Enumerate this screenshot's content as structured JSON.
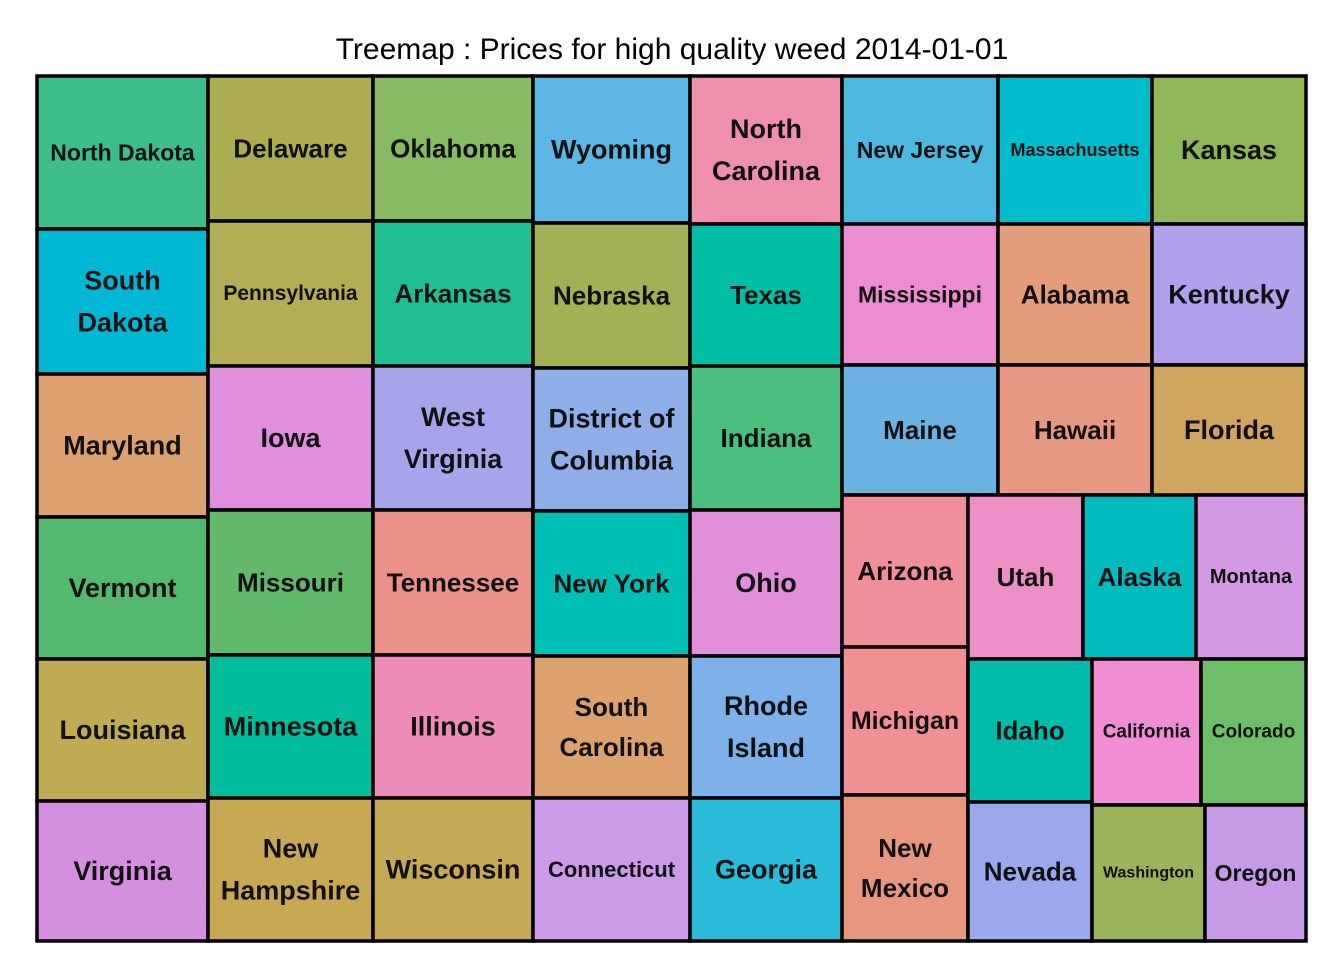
{
  "chart_data": {
    "type": "treemap",
    "title": "Treemap : Prices for high quality weed 2014-01-01",
    "tiles": [
      {
        "name": "North Dakota",
        "lines": [
          "North Dakota"
        ],
        "color": "#3cbd8a"
      },
      {
        "name": "South Dakota",
        "lines": [
          "South",
          "Dakota"
        ],
        "color": "#00b8d3"
      },
      {
        "name": "Maryland",
        "lines": [
          "Maryland"
        ],
        "color": "#dca071"
      },
      {
        "name": "Vermont",
        "lines": [
          "Vermont"
        ],
        "color": "#55b871"
      },
      {
        "name": "Louisiana",
        "lines": [
          "Louisiana"
        ],
        "color": "#c0ab55"
      },
      {
        "name": "Virginia",
        "lines": [
          "Virginia"
        ],
        "color": "#d48fdf"
      },
      {
        "name": "Delaware",
        "lines": [
          "Delaware"
        ],
        "color": "#abad50"
      },
      {
        "name": "Pennsylvania",
        "lines": [
          "Pennsylvania"
        ],
        "color": "#b3ad55"
      },
      {
        "name": "Iowa",
        "lines": [
          "Iowa"
        ],
        "color": "#df8fdc"
      },
      {
        "name": "Missouri",
        "lines": [
          "Missouri"
        ],
        "color": "#62b86b"
      },
      {
        "name": "Minnesota",
        "lines": [
          "Minnesota"
        ],
        "color": "#00be9c"
      },
      {
        "name": "New Hampshire",
        "lines": [
          "New",
          "Hampshire"
        ],
        "color": "#c7a853"
      },
      {
        "name": "Oklahoma",
        "lines": [
          "Oklahoma"
        ],
        "color": "#87ba62"
      },
      {
        "name": "Arkansas",
        "lines": [
          "Arkansas"
        ],
        "color": "#20bf92"
      },
      {
        "name": "West Virginia",
        "lines": [
          "West",
          "Virginia"
        ],
        "color": "#a6a4ea"
      },
      {
        "name": "Tennessee",
        "lines": [
          "Tennessee"
        ],
        "color": "#ea918a"
      },
      {
        "name": "Illinois",
        "lines": [
          "Illinois"
        ],
        "color": "#ed8cb7"
      },
      {
        "name": "Wisconsin",
        "lines": [
          "Wisconsin"
        ],
        "color": "#c4a956"
      },
      {
        "name": "Wyoming",
        "lines": [
          "Wyoming"
        ],
        "color": "#5db6e3"
      },
      {
        "name": "Nebraska",
        "lines": [
          "Nebraska"
        ],
        "color": "#a2b155"
      },
      {
        "name": "District of Columbia",
        "lines": [
          "District of",
          "Columbia"
        ],
        "color": "#8fade9"
      },
      {
        "name": "New York",
        "lines": [
          "New York"
        ],
        "color": "#00bfb4"
      },
      {
        "name": "South Carolina",
        "lines": [
          "South",
          "Carolina"
        ],
        "color": "#dca16c"
      },
      {
        "name": "Connecticut",
        "lines": [
          "Connecticut"
        ],
        "color": "#c99be8"
      },
      {
        "name": "North Carolina",
        "lines": [
          "North",
          "Carolina"
        ],
        "color": "#ee8fab"
      },
      {
        "name": "Texas",
        "lines": [
          "Texas"
        ],
        "color": "#00bfa4"
      },
      {
        "name": "Indiana",
        "lines": [
          "Indiana"
        ],
        "color": "#4bbf7e"
      },
      {
        "name": "Ohio",
        "lines": [
          "Ohio"
        ],
        "color": "#e18fd8"
      },
      {
        "name": "Rhode Island",
        "lines": [
          "Rhode",
          "Island"
        ],
        "color": "#7eb0ea"
      },
      {
        "name": "Georgia",
        "lines": [
          "Georgia"
        ],
        "color": "#29bbd8"
      },
      {
        "name": "New Jersey",
        "lines": [
          "New Jersey"
        ],
        "color": "#4cb9df"
      },
      {
        "name": "Mississippi",
        "lines": [
          "Mississippi"
        ],
        "color": "#ec8dcf"
      },
      {
        "name": "Maine",
        "lines": [
          "Maine"
        ],
        "color": "#6cb1e4"
      },
      {
        "name": "Arizona",
        "lines": [
          "Arizona"
        ],
        "color": "#f08e9a"
      },
      {
        "name": "Michigan",
        "lines": [
          "Michigan"
        ],
        "color": "#f08f94"
      },
      {
        "name": "New Mexico",
        "lines": [
          "New",
          "Mexico"
        ],
        "color": "#e79780"
      },
      {
        "name": "Massachusetts",
        "lines": [
          "Massachusetts"
        ],
        "color": "#00bdcd"
      },
      {
        "name": "Alabama",
        "lines": [
          "Alabama"
        ],
        "color": "#e39d7a"
      },
      {
        "name": "Hawaii",
        "lines": [
          "Hawaii"
        ],
        "color": "#e79882"
      },
      {
        "name": "Utah",
        "lines": [
          "Utah"
        ],
        "color": "#ec8fc6"
      },
      {
        "name": "Idaho",
        "lines": [
          "Idaho"
        ],
        "color": "#00bdab"
      },
      {
        "name": "Nevada",
        "lines": [
          "Nevada"
        ],
        "color": "#9aa9ec"
      },
      {
        "name": "Alaska",
        "lines": [
          "Alaska"
        ],
        "color": "#00bcbe"
      },
      {
        "name": "California",
        "lines": [
          "California"
        ],
        "color": "#f08dd3"
      },
      {
        "name": "Washington",
        "lines": [
          "Washington"
        ],
        "color": "#9bb35a"
      },
      {
        "name": "Kansas",
        "lines": [
          "Kansas"
        ],
        "color": "#8fb659"
      },
      {
        "name": "Kentucky",
        "lines": [
          "Kentucky"
        ],
        "color": "#b1a1ec"
      },
      {
        "name": "Florida",
        "lines": [
          "Florida"
        ],
        "color": "#d0a55f"
      },
      {
        "name": "Montana",
        "lines": [
          "Montana"
        ],
        "color": "#d399e5"
      },
      {
        "name": "Colorado",
        "lines": [
          "Colorado"
        ],
        "color": "#6ebd68"
      },
      {
        "name": "Oregon",
        "lines": [
          "Oregon"
        ],
        "color": "#c69ae6"
      }
    ]
  }
}
